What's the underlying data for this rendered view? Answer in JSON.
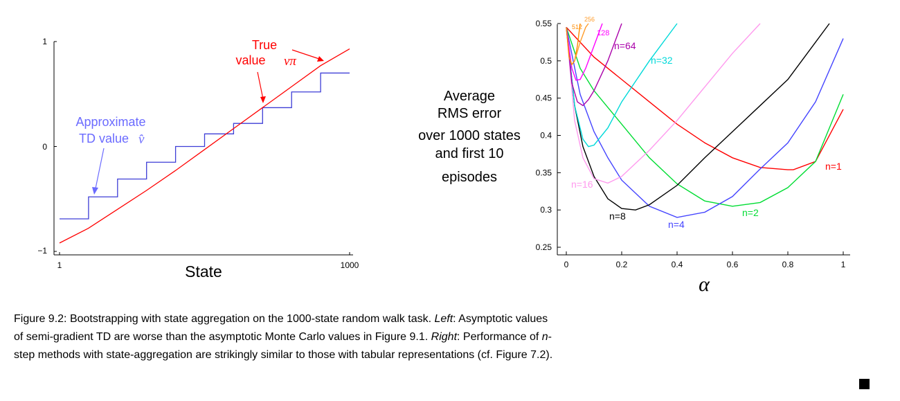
{
  "figure_title": "Figure 9.2:",
  "caption": {
    "line1_a": "Bootstrapping with state aggregation on the 1000-state random walk task.",
    "line1_left": "Left",
    "line1_b": ": Asymptotic values",
    "line2_a": "of semi-gradient TD are worse than the asymptotic Monte Carlo values in Figure 9.1.",
    "line2_right": "Right",
    "line2_b": ": Performance of",
    "line2_n": "n",
    "line2_c": "-",
    "line3": "step methods with state-aggregation are strikingly similar to those with tabular representations (cf. Figure 7.2)."
  },
  "chart_data": [
    {
      "type": "line",
      "xlabel": "State",
      "ylabel": "",
      "title": "",
      "xlim": [
        1,
        1000
      ],
      "ylim": [
        -1,
        1
      ],
      "xticks": [
        "1",
        "1000"
      ],
      "yticks": [
        "1",
        "0",
        "−1"
      ],
      "annotations": [
        {
          "text_line1": "True",
          "text_line2": "value",
          "symbol": "vπ",
          "color": "#ff0000"
        },
        {
          "text_line1": "Approximate",
          "text_line2": "TD value",
          "symbol": "v̂",
          "color": "#6b6bff"
        }
      ],
      "series": [
        {
          "name": "true",
          "color": "#ff0000",
          "x": [
            1,
            100,
            200,
            300,
            400,
            500,
            600,
            700,
            800,
            900,
            1000
          ],
          "y": [
            -0.92,
            -0.78,
            -0.6,
            -0.42,
            -0.23,
            -0.03,
            0.17,
            0.37,
            0.57,
            0.77,
            0.93
          ]
        },
        {
          "name": "approx",
          "color": "#3d3dd6",
          "steps": [
            -0.69,
            -0.48,
            -0.31,
            -0.15,
            0.0,
            0.12,
            0.22,
            0.37,
            0.52,
            0.7
          ]
        }
      ]
    },
    {
      "type": "line",
      "xlabel": "α",
      "ylabel_lines": [
        "Average",
        "RMS error",
        "over 1000 states",
        "and first 10",
        "episodes"
      ],
      "title": "",
      "xlim": [
        0,
        1
      ],
      "ylim": [
        0.25,
        0.55
      ],
      "xticks": [
        0,
        0.2,
        0.4,
        0.6,
        0.8,
        1
      ],
      "xtick_labels": [
        "0",
        "0.2",
        "0.4",
        "0.6",
        "0.8",
        "1"
      ],
      "yticks": [
        0.25,
        0.3,
        0.35,
        0.4,
        0.45,
        0.5,
        0.55
      ],
      "ytick_labels": [
        "0.25",
        "0.3",
        "0.35",
        "0.4",
        "0.45",
        "0.5",
        "0.55"
      ],
      "series": [
        {
          "name": "n=1",
          "color": "#ff0000",
          "x": [
            0,
            0.1,
            0.2,
            0.3,
            0.4,
            0.5,
            0.6,
            0.7,
            0.8,
            0.82,
            0.9,
            1.0
          ],
          "y": [
            0.545,
            0.505,
            0.475,
            0.445,
            0.415,
            0.39,
            0.37,
            0.357,
            0.354,
            0.354,
            0.365,
            0.435
          ]
        },
        {
          "name": "n=2",
          "color": "#00dd33",
          "x": [
            0,
            0.05,
            0.1,
            0.2,
            0.3,
            0.4,
            0.5,
            0.6,
            0.7,
            0.8,
            0.9,
            0.95,
            1.0
          ],
          "y": [
            0.545,
            0.49,
            0.46,
            0.415,
            0.37,
            0.335,
            0.312,
            0.305,
            0.31,
            0.33,
            0.365,
            0.41,
            0.455
          ]
        },
        {
          "name": "n=4",
          "color": "#4444ff",
          "x": [
            0,
            0.05,
            0.1,
            0.15,
            0.2,
            0.3,
            0.4,
            0.5,
            0.6,
            0.7,
            0.8,
            0.9,
            1.0
          ],
          "y": [
            0.545,
            0.455,
            0.405,
            0.37,
            0.34,
            0.305,
            0.29,
            0.297,
            0.318,
            0.355,
            0.39,
            0.445,
            0.53
          ]
        },
        {
          "name": "n=8",
          "color": "#000000",
          "x": [
            0,
            0.03,
            0.06,
            0.1,
            0.15,
            0.2,
            0.25,
            0.3,
            0.4,
            0.5,
            0.6,
            0.7,
            0.8,
            0.9,
            0.95
          ],
          "y": [
            0.545,
            0.44,
            0.385,
            0.345,
            0.315,
            0.302,
            0.3,
            0.307,
            0.333,
            0.37,
            0.405,
            0.44,
            0.475,
            0.525,
            0.55
          ]
        },
        {
          "name": "n=16",
          "color": "#ff99ee",
          "x": [
            0,
            0.03,
            0.06,
            0.1,
            0.15,
            0.2,
            0.3,
            0.4,
            0.5,
            0.6,
            0.7
          ],
          "y": [
            0.545,
            0.42,
            0.37,
            0.342,
            0.336,
            0.345,
            0.38,
            0.42,
            0.465,
            0.51,
            0.55
          ]
        },
        {
          "name": "n=32",
          "color": "#00d9d9",
          "x": [
            0,
            0.03,
            0.06,
            0.08,
            0.1,
            0.15,
            0.2,
            0.3,
            0.4
          ],
          "y": [
            0.545,
            0.44,
            0.395,
            0.385,
            0.387,
            0.41,
            0.445,
            0.5,
            0.55
          ]
        },
        {
          "name": "n=64",
          "color": "#aa00aa",
          "x": [
            0,
            0.02,
            0.04,
            0.06,
            0.08,
            0.1,
            0.15,
            0.2
          ],
          "y": [
            0.545,
            0.47,
            0.445,
            0.44,
            0.448,
            0.46,
            0.5,
            0.55
          ]
        },
        {
          "name": "128",
          "color": "#ff00ff",
          "x": [
            0,
            0.02,
            0.035,
            0.05,
            0.07,
            0.1,
            0.13
          ],
          "y": [
            0.545,
            0.49,
            0.474,
            0.475,
            0.49,
            0.52,
            0.55
          ]
        },
        {
          "name": "512",
          "color": "#ff8c00",
          "x": [
            0,
            0.01,
            0.02,
            0.03,
            0.04,
            0.05
          ],
          "y": [
            0.545,
            0.505,
            0.495,
            0.5,
            0.52,
            0.55
          ]
        },
        {
          "name": "256",
          "color": "#ff9c2a",
          "x": [
            0.03,
            0.05,
            0.07,
            0.08
          ],
          "y": [
            0.5,
            0.525,
            0.545,
            0.55
          ]
        }
      ]
    }
  ]
}
